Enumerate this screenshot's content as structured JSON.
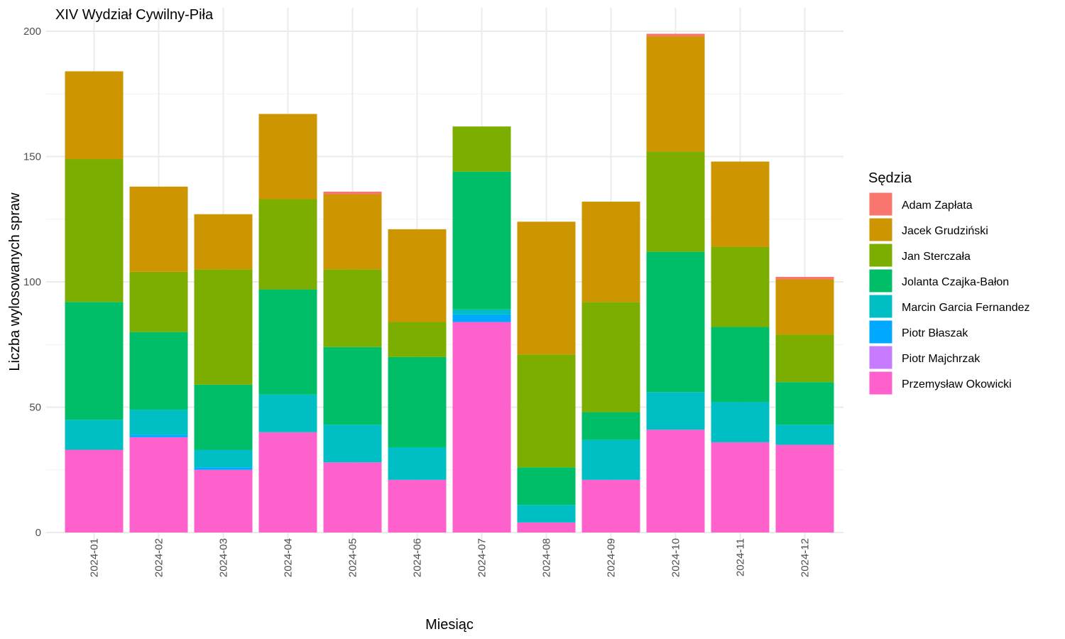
{
  "chart_data": {
    "type": "bar",
    "stacked": true,
    "title": "XIV Wydział Cywilny-Piła",
    "xlabel": "Miesiąc",
    "ylabel": "Liczba wylosowanych spraw",
    "ylim": [
      0,
      200
    ],
    "yticks": [
      0,
      50,
      100,
      150,
      200
    ],
    "grid": true,
    "legend_title": "Sędzia",
    "legend_position": "right",
    "categories": [
      "2024-01",
      "2024-02",
      "2024-03",
      "2024-04",
      "2024-05",
      "2024-06",
      "2024-07",
      "2024-08",
      "2024-09",
      "2024-10",
      "2024-11",
      "2024-12"
    ],
    "series": [
      {
        "name": "Adam Zapłata",
        "color": "#F8766D",
        "values": [
          0,
          0,
          0,
          0,
          1,
          0,
          0,
          0,
          0,
          1,
          0,
          1
        ]
      },
      {
        "name": "Jacek Grudziński",
        "color": "#CD9600",
        "values": [
          35,
          34,
          22,
          34,
          30,
          37,
          0,
          53,
          40,
          46,
          34,
          22
        ]
      },
      {
        "name": "Jan Sterczała",
        "color": "#7CAE00",
        "values": [
          57,
          24,
          46,
          36,
          31,
          14,
          18,
          45,
          44,
          40,
          32,
          19
        ]
      },
      {
        "name": "Jolanta Czajka-Bałon",
        "color": "#00BE67",
        "values": [
          47,
          31,
          26,
          42,
          31,
          36,
          55,
          15,
          11,
          56,
          30,
          17
        ]
      },
      {
        "name": "Marcin Garcia Fernandez",
        "color": "#00BFC4",
        "values": [
          12,
          10,
          7,
          15,
          15,
          13,
          2,
          7,
          16,
          15,
          16,
          8
        ]
      },
      {
        "name": "Piotr Błaszak",
        "color": "#00A9FF",
        "values": [
          0,
          1,
          1,
          0,
          0,
          0,
          3,
          0,
          0,
          0,
          0,
          0
        ]
      },
      {
        "name": "Piotr Majchrzak",
        "color": "#C77CFF",
        "values": [
          0,
          0,
          0,
          0,
          0,
          0,
          0,
          0,
          0,
          0,
          0,
          0
        ]
      },
      {
        "name": "Przemysław Okowicki",
        "color": "#FF61CC",
        "values": [
          33,
          38,
          25,
          40,
          28,
          21,
          84,
          4,
          21,
          41,
          36,
          35
        ]
      }
    ]
  }
}
